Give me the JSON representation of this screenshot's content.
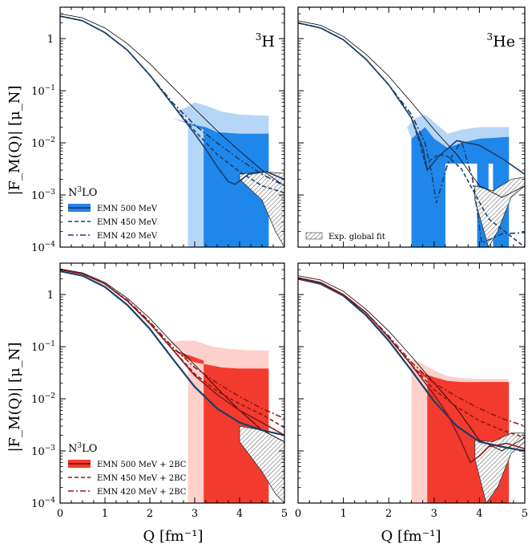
{
  "chart_data": {
    "type": "line",
    "xlabel": "Q [fm⁻¹]",
    "ylabel": "|F_M(Q)| [μ_N]",
    "xlim": [
      0,
      5
    ],
    "ylim": [
      0.0001,
      4
    ],
    "yscale": "log",
    "x_ticks": [
      "0",
      "1",
      "2",
      "3",
      "4",
      "5"
    ],
    "y_ticks": [
      {
        "label": "10",
        "exp": "−4",
        "v": 0.0001
      },
      {
        "label": "10",
        "exp": "−3",
        "v": 0.001
      },
      {
        "label": "10",
        "exp": "−2",
        "v": 0.01
      },
      {
        "label": "10",
        "exp": "−1",
        "v": 0.1
      },
      {
        "label": "1",
        "exp": "",
        "v": 1
      }
    ],
    "panels": [
      {
        "id": "top-left",
        "nucleus_pre": "3",
        "nucleus": "H",
        "colors": {
          "light": "#b6d6f7",
          "dark": "#1f86ea",
          "line": "#1a3f6a"
        },
        "legend": {
          "title_pre": "N",
          "title_exp": "3",
          "title_post": "LO",
          "entries": [
            {
              "label": "EMN 500 MeV",
              "style": "band"
            },
            {
              "label": "EMN 450 MeV",
              "style": "dashed"
            },
            {
              "label": "EMN 420 MeV",
              "style": "dashdot"
            }
          ]
        },
        "series": [
          {
            "name": "exp thin",
            "style": "thin",
            "x": [
              0,
              0.5,
              1,
              1.5,
              2,
              2.5,
              3,
              3.5,
              4,
              4.5,
              5
            ],
            "y": [
              3.0,
              2.5,
              1.6,
              0.8,
              0.33,
              0.12,
              0.045,
              0.017,
              0.007,
              0.003,
              0.0015
            ]
          },
          {
            "name": "EMN 500 MeV",
            "style": "solid",
            "x": [
              0,
              0.5,
              1,
              1.5,
              2,
              2.5,
              3,
              3.25,
              3.5,
              3.75,
              3.9,
              4.2,
              4.6,
              5
            ],
            "y": [
              2.7,
              2.2,
              1.3,
              0.6,
              0.2,
              0.055,
              0.015,
              0.0075,
              0.0035,
              0.0018,
              0.0016,
              0.0025,
              0.0028,
              0.002
            ]
          },
          {
            "name": "EMN 450 MeV",
            "style": "dashed",
            "x": [
              0,
              0.5,
              1,
              1.5,
              2,
              2.5,
              3,
              3.5,
              4,
              4.5,
              5
            ],
            "y": [
              2.7,
              2.2,
              1.3,
              0.6,
              0.2,
              0.055,
              0.017,
              0.006,
              0.0028,
              0.0015,
              0.0011
            ]
          },
          {
            "name": "EMN 420 MeV",
            "style": "dashdot",
            "x": [
              0,
              0.5,
              1,
              1.5,
              2,
              2.5,
              3,
              3.5,
              4,
              4.5,
              5
            ],
            "y": [
              2.7,
              2.2,
              1.3,
              0.6,
              0.2,
              0.06,
              0.022,
              0.01,
              0.0048,
              0.0025,
              0.0015
            ]
          }
        ]
      },
      {
        "id": "top-right",
        "nucleus_pre": "3",
        "nucleus": "He",
        "colors": {
          "light": "#b6d6f7",
          "dark": "#1f86ea",
          "line": "#1a3f6a"
        },
        "legend": {
          "entries": [
            {
              "label": "Exp. global fit",
              "style": "hatch"
            }
          ]
        },
        "series": [
          {
            "name": "exp thin",
            "style": "thin",
            "x": [
              0,
              0.5,
              1,
              1.5,
              2,
              2.5,
              3,
              3.5,
              4,
              4.5,
              5
            ],
            "y": [
              2.2,
              1.8,
              1.1,
              0.5,
              0.19,
              0.06,
              0.018,
              0.006,
              0.0015,
              0.0009,
              0.0015
            ]
          },
          {
            "name": "EMN 500 MeV",
            "style": "solid",
            "x": [
              0,
              0.5,
              1,
              1.5,
              2,
              2.5,
              2.75,
              2.85,
              3.1,
              3.5,
              4,
              4.5,
              5
            ],
            "y": [
              2.0,
              1.6,
              0.95,
              0.4,
              0.13,
              0.03,
              0.008,
              0.003,
              0.0055,
              0.011,
              0.009,
              0.005,
              0.0025
            ]
          },
          {
            "name": "EMN 450 MeV",
            "style": "dashed",
            "x": [
              0,
              0.5,
              1,
              1.5,
              2,
              2.5,
              2.7,
              2.8,
              3.1,
              3.3,
              3.6,
              4.2,
              5
            ],
            "y": [
              2.0,
              1.6,
              0.95,
              0.4,
              0.13,
              0.03,
              0.009,
              0.004,
              0.006,
              0.0055,
              0.0032,
              0.00035,
              0.0001
            ]
          },
          {
            "name": "EMN 420 MeV",
            "style": "dashdot",
            "x": [
              0,
              0.5,
              1,
              1.5,
              2,
              2.5,
              2.8,
              2.95,
              3.05,
              3.3,
              3.6,
              3.85,
              4.05,
              4.5,
              5
            ],
            "y": [
              2.0,
              1.6,
              0.95,
              0.4,
              0.13,
              0.035,
              0.01,
              0.0025,
              0.0007,
              0.004,
              0.011,
              0.002,
              0.00012,
              0.00018,
              0.00019
            ]
          }
        ]
      },
      {
        "id": "bottom-left",
        "colors": {
          "light": "#fdd0cb",
          "dark": "#f23b2e",
          "line": "#8b1a1a"
        },
        "legend": {
          "title_pre": "N",
          "title_exp": "3",
          "title_post": "LO",
          "entries": [
            {
              "label": "EMN 500 MeV + 2BC",
              "style": "band"
            },
            {
              "label": "EMN 450 MeV + 2BC",
              "style": "dashed"
            },
            {
              "label": "EMN 420 MeV + 2BC",
              "style": "dashdot"
            }
          ]
        },
        "series": [
          {
            "name": "exp thin",
            "style": "thin",
            "x": [
              0,
              0.5,
              1,
              1.5,
              2,
              2.5,
              3,
              3.5,
              4,
              4.5,
              5
            ],
            "y": [
              3.1,
              2.6,
              1.7,
              0.85,
              0.35,
              0.12,
              0.045,
              0.016,
              0.006,
              0.0025,
              0.0015
            ]
          },
          {
            "name": "1BC ref",
            "style": "solidblue",
            "x": [
              0,
              0.5,
              1,
              1.5,
              2,
              2.5,
              3,
              3.5,
              4,
              4.5,
              5
            ],
            "y": [
              2.8,
              2.3,
              1.4,
              0.63,
              0.22,
              0.06,
              0.017,
              0.0065,
              0.0035,
              0.0025,
              0.002
            ]
          },
          {
            "name": "EMN 500 MeV + 2BC",
            "style": "solid",
            "x": [
              0,
              0.5,
              1,
              1.5,
              2,
              2.5,
              3,
              3.5,
              4,
              4.5,
              5
            ],
            "y": [
              3.0,
              2.5,
              1.6,
              0.75,
              0.28,
              0.09,
              0.028,
              0.012,
              0.006,
              0.0035,
              0.002
            ]
          },
          {
            "name": "EMN 450 MeV + 2BC",
            "style": "dashed",
            "x": [
              0,
              0.5,
              1,
              1.5,
              2,
              2.5,
              3,
              3.5,
              4,
              4.5,
              5
            ],
            "y": [
              3.0,
              2.5,
              1.6,
              0.75,
              0.28,
              0.09,
              0.03,
              0.014,
              0.008,
              0.005,
              0.0028
            ]
          },
          {
            "name": "EMN 420 MeV + 2BC",
            "style": "dashdot",
            "x": [
              0,
              0.5,
              1,
              1.5,
              2,
              2.5,
              3,
              3.5,
              4,
              4.5,
              5
            ],
            "y": [
              3.0,
              2.5,
              1.6,
              0.78,
              0.3,
              0.1,
              0.04,
              0.02,
              0.011,
              0.0065,
              0.0042
            ]
          }
        ]
      },
      {
        "id": "bottom-right",
        "colors": {
          "light": "#fdd0cb",
          "dark": "#f23b2e",
          "line": "#8b1a1a"
        },
        "legend": {
          "entries": []
        },
        "series": [
          {
            "name": "exp thin",
            "style": "thin",
            "x": [
              0,
              0.5,
              1,
              1.5,
              2,
              2.5,
              3,
              3.5,
              4,
              4.5,
              5
            ],
            "y": [
              2.3,
              1.9,
              1.15,
              0.52,
              0.2,
              0.065,
              0.02,
              0.0065,
              0.0016,
              0.001,
              0.0018
            ]
          },
          {
            "name": "1BC ref",
            "style": "solidblue",
            "x": [
              0,
              0.5,
              1,
              1.5,
              2,
              2.5,
              3,
              3.5,
              4,
              4.5,
              5
            ],
            "y": [
              2.0,
              1.6,
              0.95,
              0.4,
              0.13,
              0.035,
              0.009,
              0.003,
              0.0015,
              0.0012,
              0.001
            ]
          },
          {
            "name": "EMN 500 MeV + 2BC",
            "style": "solid",
            "x": [
              0,
              0.5,
              1,
              1.5,
              2,
              2.5,
              3,
              3.3,
              3.6,
              3.8,
              4,
              4.2,
              4.6,
              5
            ],
            "y": [
              2.1,
              1.7,
              1.0,
              0.45,
              0.15,
              0.045,
              0.012,
              0.005,
              0.0015,
              0.0006,
              0.0008,
              0.0012,
              0.0014,
              0.0011
            ]
          },
          {
            "name": "EMN 450 MeV + 2BC",
            "style": "dashed",
            "x": [
              0,
              0.5,
              1,
              1.5,
              2,
              2.5,
              3,
              3.5,
              4,
              4.5,
              5
            ],
            "y": [
              2.1,
              1.7,
              1.0,
              0.45,
              0.15,
              0.045,
              0.015,
              0.007,
              0.0038,
              0.0025,
              0.0018
            ]
          },
          {
            "name": "EMN 420 MeV + 2BC",
            "style": "dashdot",
            "x": [
              0,
              0.5,
              1,
              1.5,
              2,
              2.5,
              3,
              3.5,
              4,
              4.5,
              5
            ],
            "y": [
              2.1,
              1.7,
              1.0,
              0.45,
              0.16,
              0.05,
              0.02,
              0.011,
              0.0065,
              0.0042,
              0.003
            ]
          }
        ]
      }
    ]
  }
}
